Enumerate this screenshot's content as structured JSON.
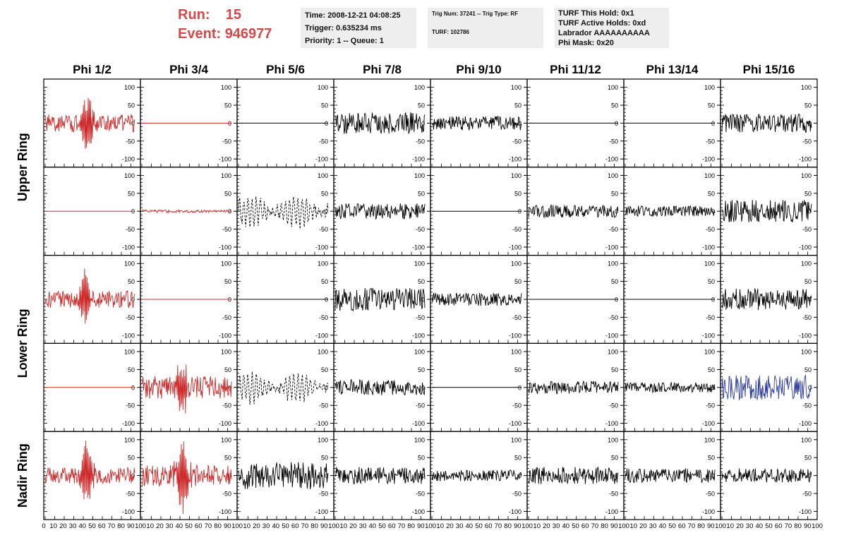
{
  "header": {
    "run_label": "Run:",
    "run_value": "15",
    "event_label": "Event:",
    "event_value": "946977"
  },
  "info_time": {
    "line1": "Time: 2008-12-21 04:08:25",
    "line2": "Trigger: 0.635234 ms",
    "line3": "Priority: 1 -- Queue: 1"
  },
  "info_trig": {
    "line1": "Trig Num: 37241 -- Trig Type: RF",
    "line2": "TURF: 102786"
  },
  "info_turf": {
    "line1": "TURF This Hold: 0x1",
    "line2": "TURF Active Holds: 0xd",
    "line3": "Labrador AAAAAAAAAA",
    "line4": "Phi Mask: 0x20"
  },
  "colors": {
    "red": "#cc2a2a",
    "black": "#000000",
    "blue": "#2e3d9e",
    "header_red": "#d24a4a",
    "info_bg": "#eeeeee"
  },
  "chart_data": {
    "type": "line",
    "columns": [
      "Phi 1/2",
      "Phi 3/4",
      "Phi 5/6",
      "Phi 7/8",
      "Phi 9/10",
      "Phi 11/12",
      "Phi 13/14",
      "Phi 15/16"
    ],
    "ring_labels": [
      "Upper Ring",
      "Lower Ring",
      "Nadir Ring"
    ],
    "xlim": [
      0,
      100
    ],
    "ylim": [
      -115,
      115
    ],
    "x_ticks": [
      0,
      10,
      20,
      30,
      40,
      50,
      60,
      70,
      80,
      90,
      100
    ],
    "y_ticks": [
      -100,
      -50,
      0,
      50,
      100
    ],
    "panels": [
      [
        {
          "color": "red",
          "style": "pulse",
          "amp": 25,
          "pulse_center": 45,
          "pulse_amp": 78,
          "seed": 11
        },
        {
          "color": "red",
          "style": "flat",
          "seed": 12
        },
        {
          "color": "black",
          "style": "flat",
          "seed": 13
        },
        {
          "color": "black",
          "style": "noise",
          "amp": 30,
          "seed": 14
        },
        {
          "color": "black",
          "style": "noise",
          "amp": 20,
          "seed": 15
        },
        {
          "color": "black",
          "style": "flat",
          "seed": 16
        },
        {
          "color": "black",
          "style": "flat",
          "seed": 17
        },
        {
          "color": "black",
          "style": "noise",
          "amp": 26,
          "seed": 18
        }
      ],
      [
        {
          "color": "red",
          "style": "flat",
          "seed": 21
        },
        {
          "color": "red",
          "style": "noise",
          "amp": 4,
          "seed": 22
        },
        {
          "color": "black",
          "style": "dashed",
          "amp": 40,
          "seed": 23
        },
        {
          "color": "black",
          "style": "noise",
          "amp": 22,
          "seed": 24
        },
        {
          "color": "black",
          "style": "flat",
          "seed": 25
        },
        {
          "color": "black",
          "style": "noise",
          "amp": 18,
          "seed": 26
        },
        {
          "color": "black",
          "style": "noise",
          "amp": 15,
          "seed": 27
        },
        {
          "color": "black",
          "style": "noise",
          "amp": 32,
          "seed": 28
        }
      ],
      [
        {
          "color": "red",
          "style": "pulse",
          "amp": 25,
          "pulse_center": 42,
          "pulse_amp": 70,
          "seed": 31
        },
        {
          "color": "red",
          "style": "flat",
          "seed": 32
        },
        {
          "color": "black",
          "style": "flat",
          "seed": 33
        },
        {
          "color": "black",
          "style": "noise",
          "amp": 32,
          "seed": 34
        },
        {
          "color": "black",
          "style": "noise",
          "amp": 18,
          "seed": 35
        },
        {
          "color": "black",
          "style": "flat",
          "seed": 36
        },
        {
          "color": "black",
          "style": "flat",
          "seed": 37
        },
        {
          "color": "black",
          "style": "noise",
          "amp": 30,
          "seed": 38
        }
      ],
      [
        {
          "color": "red",
          "style": "flat",
          "seed": 41
        },
        {
          "color": "red",
          "style": "pulse",
          "amp": 32,
          "pulse_center": 42,
          "pulse_amp": 80,
          "seed": 42
        },
        {
          "color": "black",
          "style": "dashed",
          "amp": 38,
          "seed": 43
        },
        {
          "color": "black",
          "style": "noise",
          "amp": 22,
          "seed": 44
        },
        {
          "color": "black",
          "style": "flat",
          "seed": 45
        },
        {
          "color": "black",
          "style": "noise",
          "amp": 18,
          "seed": 46
        },
        {
          "color": "black",
          "style": "noise",
          "amp": 14,
          "seed": 47
        },
        {
          "color": "blue",
          "style": "noise",
          "amp": 34,
          "seed": 48
        }
      ],
      [
        {
          "color": "red",
          "style": "pulse",
          "amp": 22,
          "pulse_center": 44,
          "pulse_amp": 85,
          "seed": 51
        },
        {
          "color": "red",
          "style": "pulse",
          "amp": 30,
          "pulse_center": 43,
          "pulse_amp": 95,
          "seed": 52
        },
        {
          "color": "black",
          "style": "noise",
          "amp": 38,
          "seed": 53
        },
        {
          "color": "black",
          "style": "noise",
          "amp": 24,
          "seed": 54
        },
        {
          "color": "black",
          "style": "noise",
          "amp": 16,
          "seed": 55
        },
        {
          "color": "black",
          "style": "noise",
          "amp": 24,
          "seed": 56
        },
        {
          "color": "black",
          "style": "noise",
          "amp": 20,
          "seed": 57
        },
        {
          "color": "black",
          "style": "noise",
          "amp": 20,
          "seed": 58
        }
      ]
    ]
  }
}
